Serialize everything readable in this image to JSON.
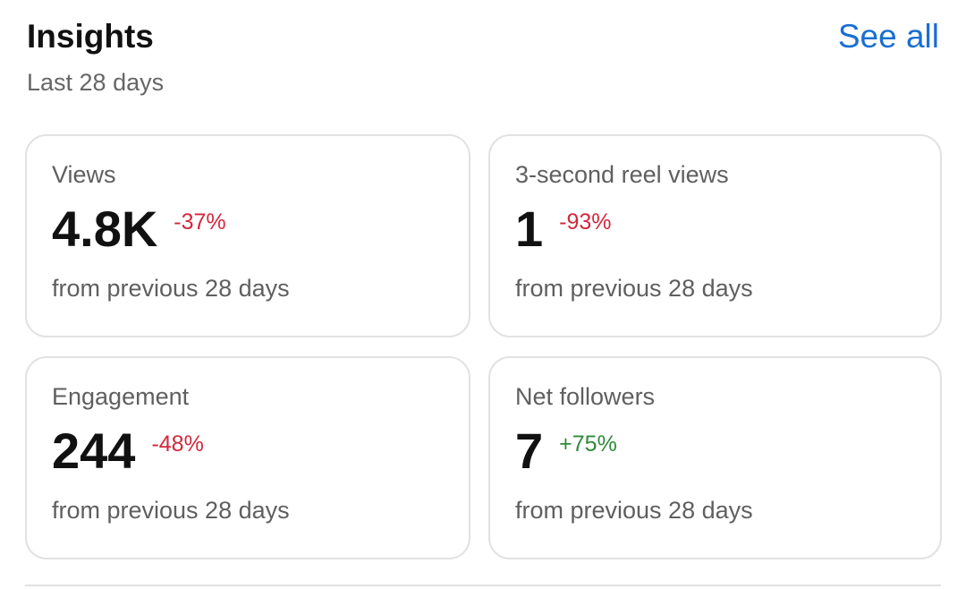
{
  "header": {
    "title": "Insights",
    "subtitle": "Last 28 days",
    "link": "See all"
  },
  "cards": [
    {
      "label": "Views",
      "value": "4.8K",
      "change": "-37%",
      "note": "from previous 28 days"
    },
    {
      "label": "3-second reel views",
      "value": "1",
      "change": "-93%",
      "note": "from previous 28 days"
    },
    {
      "label": "Engagement",
      "value": "244",
      "change": "-48%",
      "note": "from previous 28 days"
    },
    {
      "label": "Net followers",
      "value": "7",
      "change": "+75%",
      "note": "from previous 28 days"
    }
  ]
}
